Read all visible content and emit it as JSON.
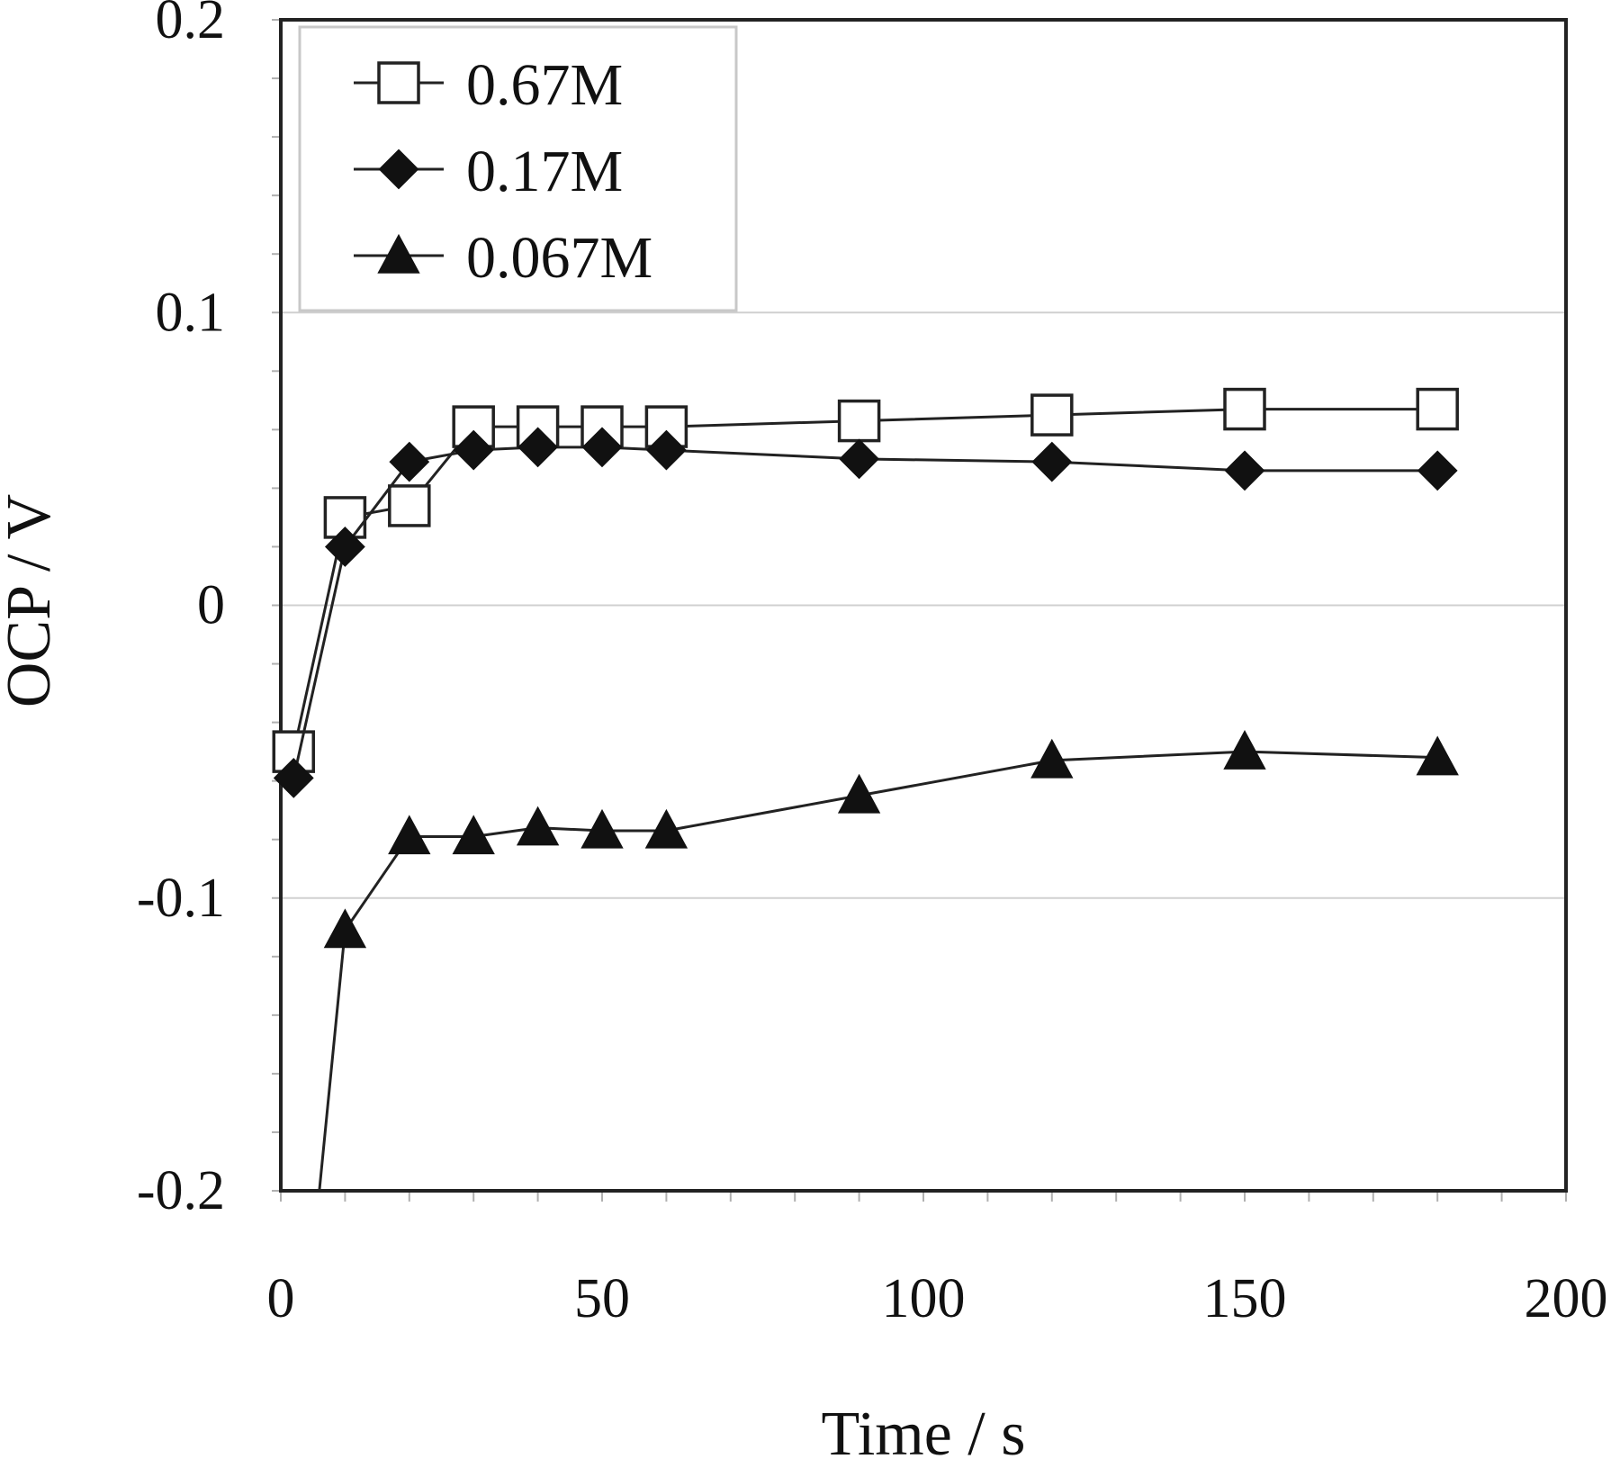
{
  "chart_data": {
    "type": "line",
    "title": "",
    "xlabel": "Time / s",
    "ylabel": "OCP / V",
    "xlim": [
      0,
      200
    ],
    "ylim": [
      -0.2,
      0.2
    ],
    "xticks": [
      0,
      50,
      100,
      150,
      200
    ],
    "xtick_labels": [
      "0",
      "50",
      "100",
      "150",
      "200"
    ],
    "yticks": [
      0.2,
      0.1,
      0,
      -0.1,
      -0.2
    ],
    "ytick_labels": [
      "0.2",
      "0.1",
      "0",
      "-0.1",
      "-0.2"
    ],
    "grid": "horizontal",
    "legend_position": "top-left",
    "series": [
      {
        "name": "0.67M",
        "marker": "square-open",
        "x": [
          2,
          10,
          20,
          30,
          40,
          50,
          60,
          90,
          120,
          150,
          180
        ],
        "y": [
          -0.05,
          0.03,
          0.034,
          0.061,
          0.061,
          0.061,
          0.061,
          0.063,
          0.065,
          0.067,
          0.067
        ]
      },
      {
        "name": "0.17M",
        "marker": "diamond-filled",
        "x": [
          2,
          10,
          20,
          30,
          40,
          50,
          60,
          90,
          120,
          150,
          180
        ],
        "y": [
          -0.059,
          0.02,
          0.049,
          0.053,
          0.054,
          0.054,
          0.053,
          0.05,
          0.049,
          0.046,
          0.046
        ]
      },
      {
        "name": "0.067M",
        "marker": "triangle-filled",
        "x": [
          6,
          10,
          20,
          30,
          40,
          50,
          60,
          90,
          120,
          150,
          180
        ],
        "y": [
          -0.2,
          -0.111,
          -0.079,
          -0.079,
          -0.076,
          -0.077,
          -0.077,
          -0.065,
          -0.053,
          -0.05,
          -0.052
        ]
      }
    ]
  }
}
